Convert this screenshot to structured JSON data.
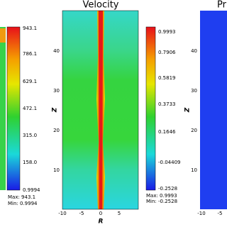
{
  "panels": [
    {
      "colorbar": {
        "labels": [
          "943.1",
          "786.1",
          "629.1",
          "472.1",
          "315.0",
          "158.0",
          "0.9994"
        ]
      },
      "max_label": "Max: 943.1",
      "min_label": "Min: 0.9994"
    },
    {
      "title": "Velocity",
      "yticks": [
        "40",
        "30",
        "20",
        "10"
      ],
      "ylabel": "Z",
      "xticks": [
        "-10",
        "-5",
        "0",
        "5"
      ],
      "xlabel": "R",
      "colorbar": {
        "labels": [
          "0.9993",
          "0.7906",
          "0.5819",
          "0.3733",
          "0.1646",
          "-0.04409",
          "-0.2528"
        ]
      },
      "max_label": "Max: 0.9993",
      "min_label": "Min: -0.2528"
    },
    {
      "title": "Pr",
      "yticks": [
        "40",
        "30",
        "20",
        "10"
      ],
      "ylabel": "Z",
      "xticks": [
        "-10",
        "-5"
      ]
    }
  ]
}
